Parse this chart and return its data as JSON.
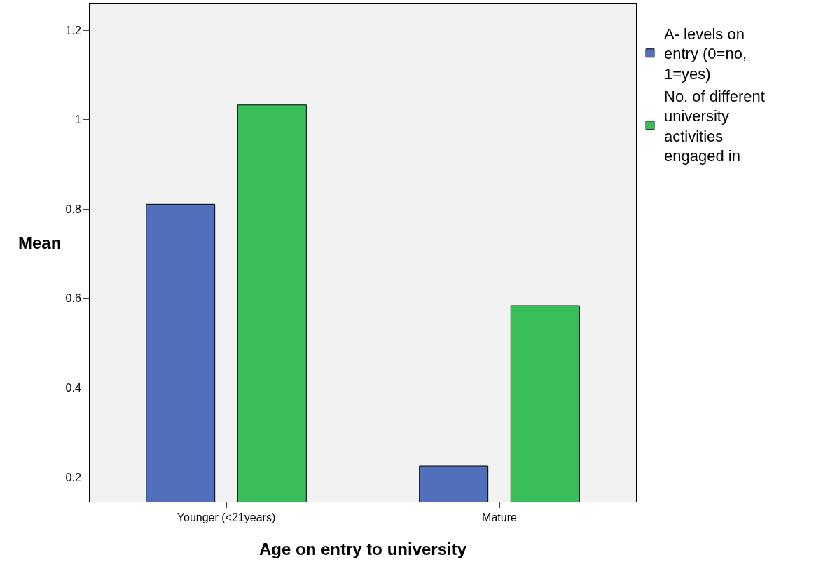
{
  "chart_data": {
    "type": "bar",
    "xlabel": "Age on entry to university",
    "ylabel": "Mean",
    "categories": [
      "Younger (<21years)",
      "Mature"
    ],
    "series": [
      {
        "name": "A- levels on entry (0=no, 1=yes)",
        "color": "#5070bb",
        "values": [
          0.811,
          0.225
        ]
      },
      {
        "name": "No. of different university activities engaged in",
        "color": "#38bf5a",
        "values": [
          1.033,
          0.584
        ]
      }
    ],
    "ylim": [
      0.145,
      1.26
    ],
    "yticks": [
      0.2,
      0.4,
      0.6,
      0.8,
      1,
      1.2
    ],
    "grid": false,
    "legend": "top right"
  }
}
